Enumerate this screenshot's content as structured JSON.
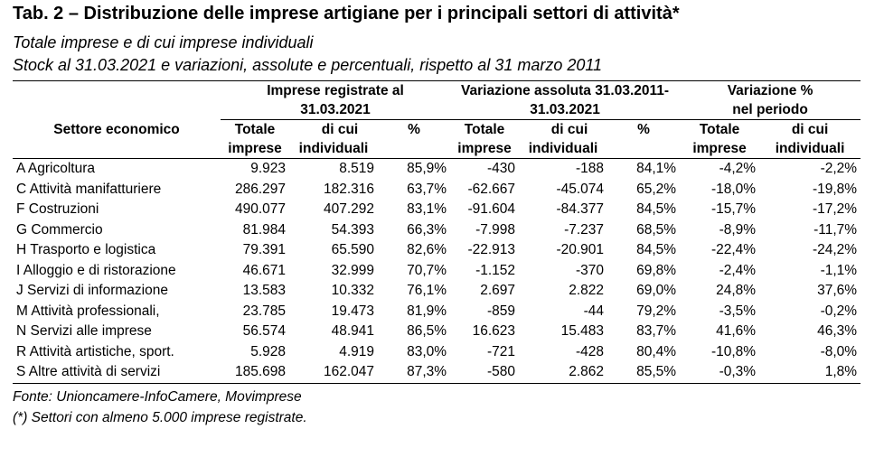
{
  "title": "Tab. 2 – Distribuzione delle imprese artigiane per i principali settori di attività*",
  "subtitle1": "Totale imprese e di cui imprese individuali",
  "subtitle2": "Stock al 31.03.2021 e variazioni, assolute e percentuali, rispetto al 31 marzo 2011",
  "headers": {
    "group1_line1": "Imprese registrate al",
    "group1_line2": "31.03.2021",
    "group2_line1": "Variazione assoluta 31.03.2011-",
    "group2_line2": "31.03.2021",
    "group3_line1": "Variazione %",
    "group3_line2": "nel periodo",
    "sector": "Settore economico",
    "totale_1": "Totale",
    "totale_2": "imprese",
    "dicui_1": "di cui",
    "dicui_2": "individuali",
    "pct": "%"
  },
  "rows": [
    {
      "sector": "A Agricoltura",
      "tot": "9.923",
      "ind": "8.519",
      "pct": "85,9%",
      "vtot": "-430",
      "vind": "-188",
      "vpct": "84,1%",
      "ptot": "-4,2%",
      "pind": "-2,2%"
    },
    {
      "sector": "C Attività manifatturiere",
      "tot": "286.297",
      "ind": "182.316",
      "pct": "63,7%",
      "vtot": "-62.667",
      "vind": "-45.074",
      "vpct": "65,2%",
      "ptot": "-18,0%",
      "pind": "-19,8%"
    },
    {
      "sector": "F Costruzioni",
      "tot": "490.077",
      "ind": "407.292",
      "pct": "83,1%",
      "vtot": "-91.604",
      "vind": "-84.377",
      "vpct": "84,5%",
      "ptot": "-15,7%",
      "pind": "-17,2%"
    },
    {
      "sector": "G Commercio",
      "tot": "81.984",
      "ind": "54.393",
      "pct": "66,3%",
      "vtot": "-7.998",
      "vind": "-7.237",
      "vpct": "68,5%",
      "ptot": "-8,9%",
      "pind": "-11,7%"
    },
    {
      "sector": "H Trasporto e logistica",
      "tot": "79.391",
      "ind": "65.590",
      "pct": "82,6%",
      "vtot": "-22.913",
      "vind": "-20.901",
      "vpct": "84,5%",
      "ptot": "-22,4%",
      "pind": "-24,2%"
    },
    {
      "sector": "I Alloggio e di ristorazione",
      "tot": "46.671",
      "ind": "32.999",
      "pct": "70,7%",
      "vtot": "-1.152",
      "vind": "-370",
      "vpct": "69,8%",
      "ptot": "-2,4%",
      "pind": "-1,1%"
    },
    {
      "sector": "J Servizi di informazione",
      "tot": "13.583",
      "ind": "10.332",
      "pct": "76,1%",
      "vtot": "2.697",
      "vind": "2.822",
      "vpct": "69,0%",
      "ptot": "24,8%",
      "pind": "37,6%"
    },
    {
      "sector": "M Attività professionali,",
      "tot": "23.785",
      "ind": "19.473",
      "pct": "81,9%",
      "vtot": "-859",
      "vind": "-44",
      "vpct": "79,2%",
      "ptot": "-3,5%",
      "pind": "-0,2%"
    },
    {
      "sector": "N Servizi alle imprese",
      "tot": "56.574",
      "ind": "48.941",
      "pct": "86,5%",
      "vtot": "16.623",
      "vind": "15.483",
      "vpct": "83,7%",
      "ptot": "41,6%",
      "pind": "46,3%"
    },
    {
      "sector": "R Attività artistiche, sport.",
      "tot": "5.928",
      "ind": "4.919",
      "pct": "83,0%",
      "vtot": "-721",
      "vind": "-428",
      "vpct": "80,4%",
      "ptot": "-10,8%",
      "pind": "-8,0%"
    },
    {
      "sector": "S Altre attività di servizi",
      "tot": "185.698",
      "ind": "162.047",
      "pct": "87,3%",
      "vtot": "-580",
      "vind": "2.862",
      "vpct": "85,5%",
      "ptot": "-0,3%",
      "pind": "1,8%"
    }
  ],
  "source_note": "Fonte: Unioncamere-InfoCamere, Movimprese",
  "footnote": "(*) Settori con almeno 5.000 imprese registrate."
}
